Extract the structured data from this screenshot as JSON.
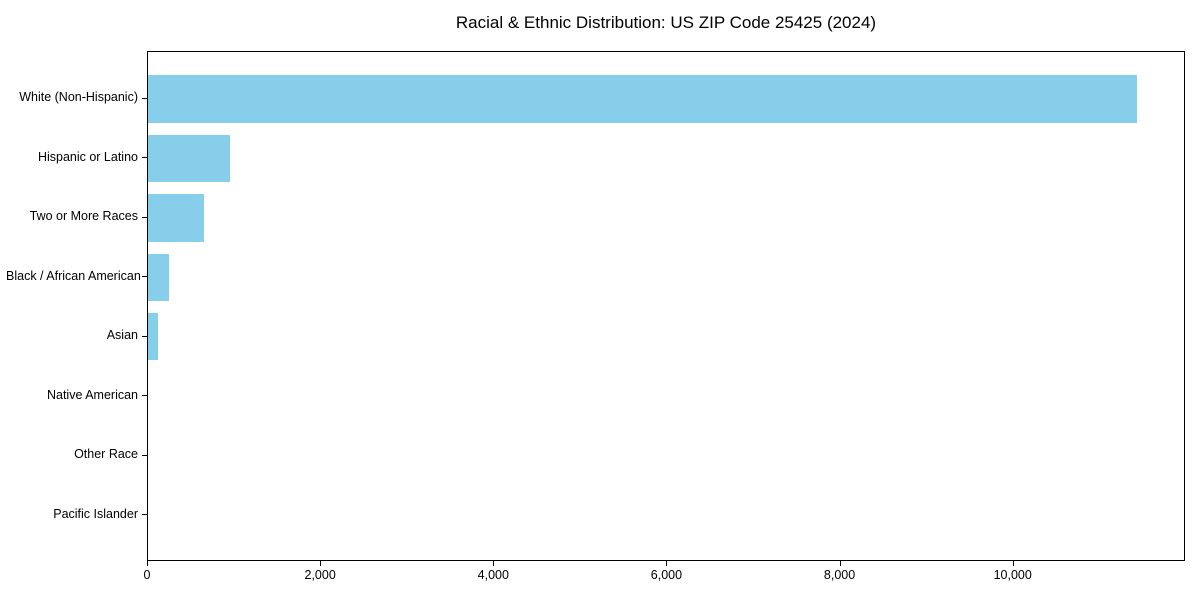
{
  "chart_data": {
    "type": "bar",
    "orientation": "horizontal",
    "title": "Racial & Ethnic Distribution: US ZIP Code 25425 (2024)",
    "categories": [
      "White (Non-Hispanic)",
      "Hispanic or Latino",
      "Two or More Races",
      "Black / African American",
      "Asian",
      "Native American",
      "Other Race",
      "Pacific Islander"
    ],
    "values": [
      11420,
      950,
      650,
      240,
      120,
      0,
      0,
      0
    ],
    "bar_color": "#87CEEB",
    "spine_color": "#000000",
    "text_color": "#000000",
    "xlim": [
      0,
      11990
    ],
    "x_ticks": [
      0,
      2000,
      4000,
      6000,
      8000,
      10000
    ],
    "x_tick_labels": [
      "0",
      "2,000",
      "4,000",
      "6,000",
      "8,000",
      "10,000"
    ],
    "xlabel": "",
    "ylabel": "",
    "grid": false
  }
}
